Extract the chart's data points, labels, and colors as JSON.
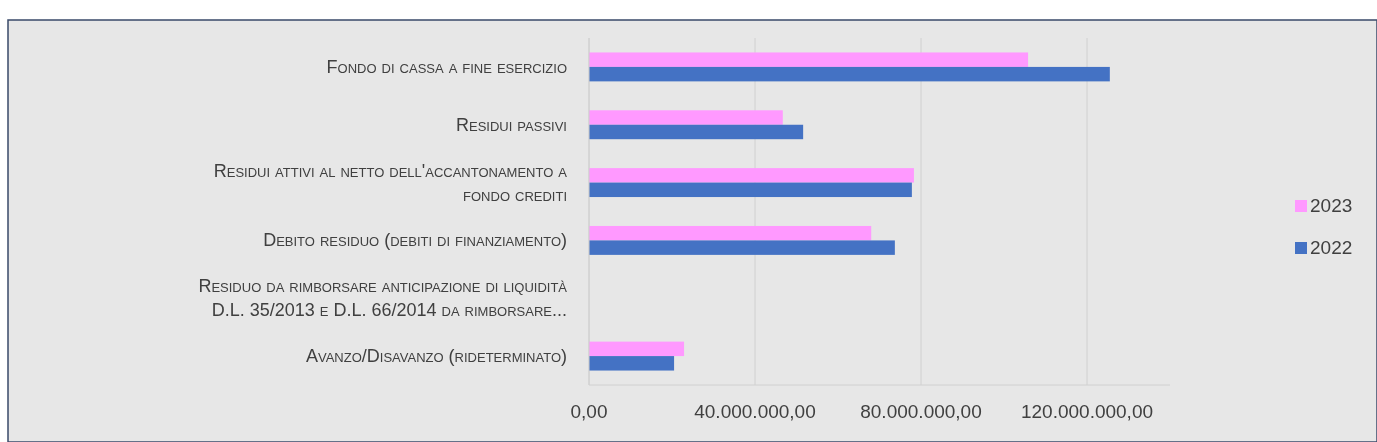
{
  "chart_data": {
    "type": "bar",
    "orientation": "horizontal",
    "categories": [
      "Fondo di cassa a fine esercizio",
      "Residui passivi",
      "Residui attivi al netto dell'accantonamento a fondo crediti",
      "Debito residuo (debiti di finanziamento)",
      "Residuo da rimborsare anticipazione di liquidità D.L. 35/2013 e D.L. 66/2014 da rimborsare...",
      "Avanzo/Disavanzo (rideterminato)"
    ],
    "series": [
      {
        "name": "2023",
        "color": "#ff99ff",
        "values": [
          105800000,
          46700000,
          78300000,
          68000000,
          null,
          22900000
        ]
      },
      {
        "name": "2022",
        "color": "#4472c4",
        "values": [
          125500000,
          51600000,
          77800000,
          73700000,
          null,
          20500000
        ]
      }
    ],
    "xlim": [
      0,
      140000000
    ],
    "xticks": [
      {
        "value": 0,
        "label": "0,00"
      },
      {
        "value": 40000000,
        "label": "40.000.000,00"
      },
      {
        "value": 80000000,
        "label": "80.000.000,00"
      },
      {
        "value": 120000000,
        "label": "120.000.000,00"
      }
    ],
    "grid": "x",
    "legend": "right"
  }
}
